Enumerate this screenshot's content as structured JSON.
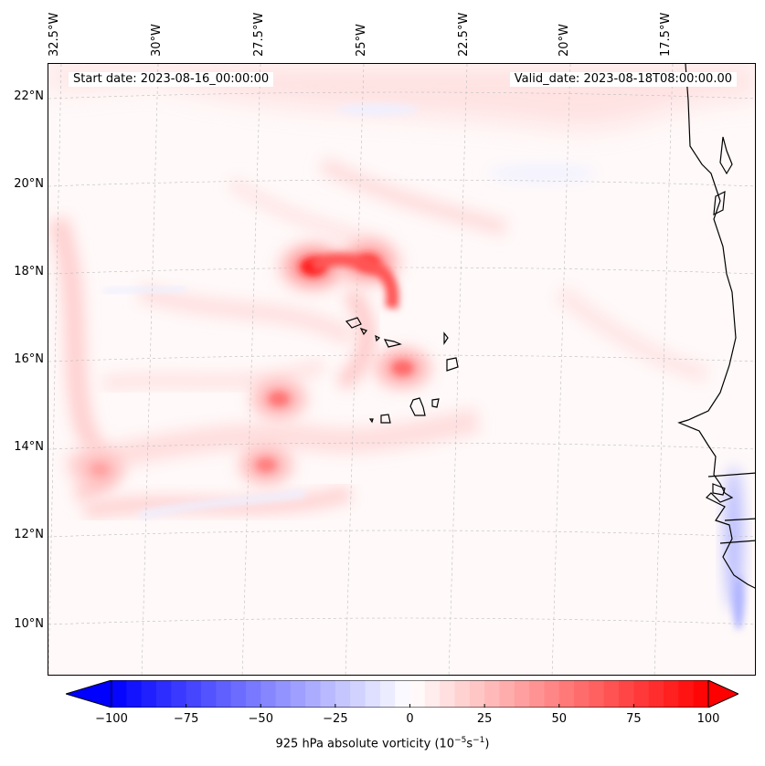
{
  "map": {
    "start_date": "Start date: 2023-08-16_00:00:00",
    "valid_date": "Valid_date: 2023-08-18T08:00:00.00",
    "lon_labels": [
      "32.5°W",
      "30°W",
      "27.5°W",
      "25°W",
      "22.5°W",
      "20°W",
      "17.5°W"
    ],
    "lat_labels": [
      "22°N",
      "20°N",
      "18°N",
      "16°N",
      "14°N",
      "12°N",
      "10°N"
    ],
    "extent": {
      "lon_min": -32.8,
      "lon_max": -16.2,
      "lat_min": 8.9,
      "lat_max": 22.8
    },
    "field": "925 hPa absolute vorticity",
    "vorticity_maxima": [
      {
        "lon": -26.6,
        "lat": 18.2,
        "value": 100
      },
      {
        "lon": -25.3,
        "lat": 18.3,
        "value": 85
      },
      {
        "lon": -24.5,
        "lat": 15.9,
        "value": 65
      },
      {
        "lon": -27.4,
        "lat": 15.2,
        "value": 60
      },
      {
        "lon": -27.7,
        "lat": 13.7,
        "value": 55
      },
      {
        "lon": -31.6,
        "lat": 13.6,
        "value": 35
      }
    ],
    "colors": {
      "negative": "#0000ff",
      "zero": "#ffffff",
      "positive": "#ff0000"
    }
  },
  "colorbar": {
    "min": -100,
    "max": 100,
    "ticks": [
      "−100",
      "−75",
      "−50",
      "−25",
      "0",
      "25",
      "50",
      "75",
      "100"
    ],
    "label_main": "925 hPa absolute vorticity (10",
    "label_exp1": "−5",
    "label_mid": "s",
    "label_exp2": "−1",
    "label_end": ")"
  }
}
